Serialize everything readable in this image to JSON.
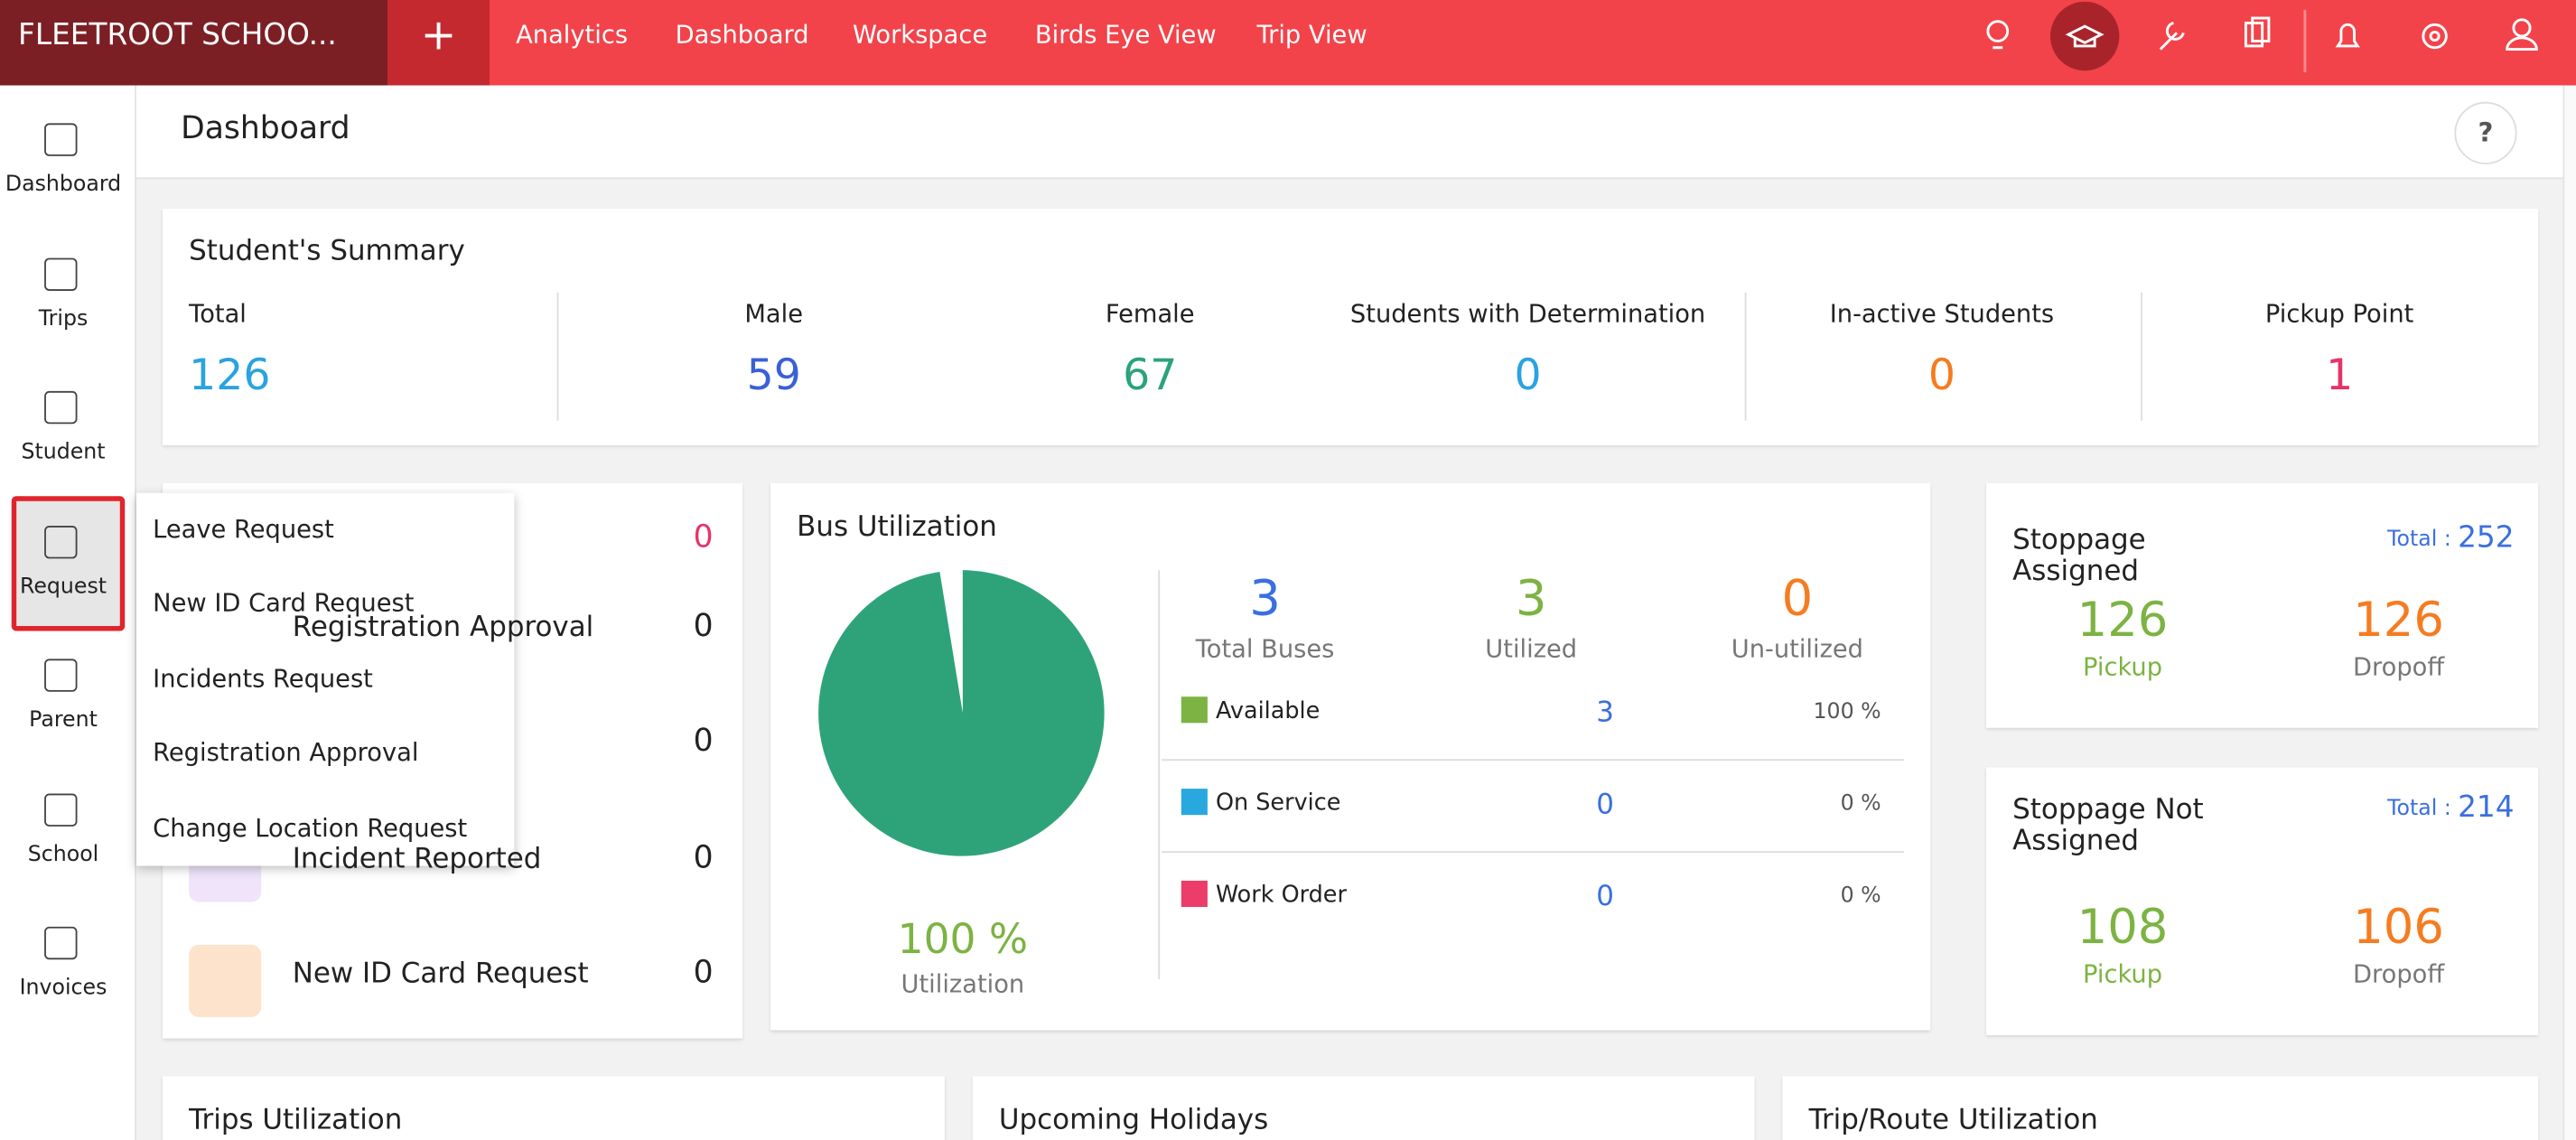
{
  "brand": "FLEETROOT SCHOO...",
  "plus": "+",
  "topnav": [
    "Analytics",
    "Dashboard",
    "Workspace",
    "Birds Eye View",
    "Trip View"
  ],
  "sidebar": [
    "Dashboard",
    "Trips",
    "Student",
    "Request",
    "Parent",
    "School",
    "Invoices"
  ],
  "page_title": "Dashboard",
  "help": "?",
  "summary": {
    "title": "Student's Summary",
    "items": [
      {
        "label": "Total",
        "value": "126"
      },
      {
        "label": "Male",
        "value": "59"
      },
      {
        "label": "Female",
        "value": "67"
      },
      {
        "label": "Students with Determination",
        "value": "0"
      },
      {
        "label": "In-active Students",
        "value": "0"
      },
      {
        "label": "Pickup Point",
        "value": "1"
      }
    ]
  },
  "requests": {
    "rows": [
      {
        "value": "0"
      },
      {
        "label": "Registration Approval",
        "value": "0"
      },
      {
        "value": "0"
      },
      {
        "label": "Incident Reported",
        "value": "0"
      },
      {
        "label": "New ID Card Request",
        "value": "0"
      }
    ]
  },
  "request_menu": [
    "Leave Request",
    "New ID Card Request",
    "Incidents Request",
    "Registration Approval",
    "Change Location Request"
  ],
  "bus": {
    "title": "Bus Utilization",
    "utilization": "100 %",
    "utilization_label": "Utilization",
    "stats": [
      {
        "value": "3",
        "label": "Total Buses"
      },
      {
        "value": "3",
        "label": "Utilized"
      },
      {
        "value": "0",
        "label": "Un-utilized"
      }
    ],
    "legend": [
      {
        "name": "Available",
        "color": "#7cb342",
        "count": "3",
        "percent": "100 %"
      },
      {
        "name": "On Service",
        "color": "#29a8df",
        "count": "0",
        "percent": "0 %"
      },
      {
        "name": "Work Order",
        "color": "#ec3c6a",
        "count": "0",
        "percent": "0 %"
      }
    ]
  },
  "stoppage": [
    {
      "title": "Stoppage Assigned",
      "total_label": "Total :",
      "total": "252",
      "pickup": "126",
      "pickup_label": "Pickup",
      "dropoff": "126",
      "dropoff_label": "Dropoff"
    },
    {
      "title": "Stoppage Not Assigned",
      "total_label": "Total :",
      "total": "214",
      "pickup": "108",
      "pickup_label": "Pickup",
      "dropoff": "106",
      "dropoff_label": "Dropoff"
    }
  ],
  "bottom": [
    "Trips Utilization",
    "Upcoming Holidays",
    "Trip/Route Utilization"
  ]
}
